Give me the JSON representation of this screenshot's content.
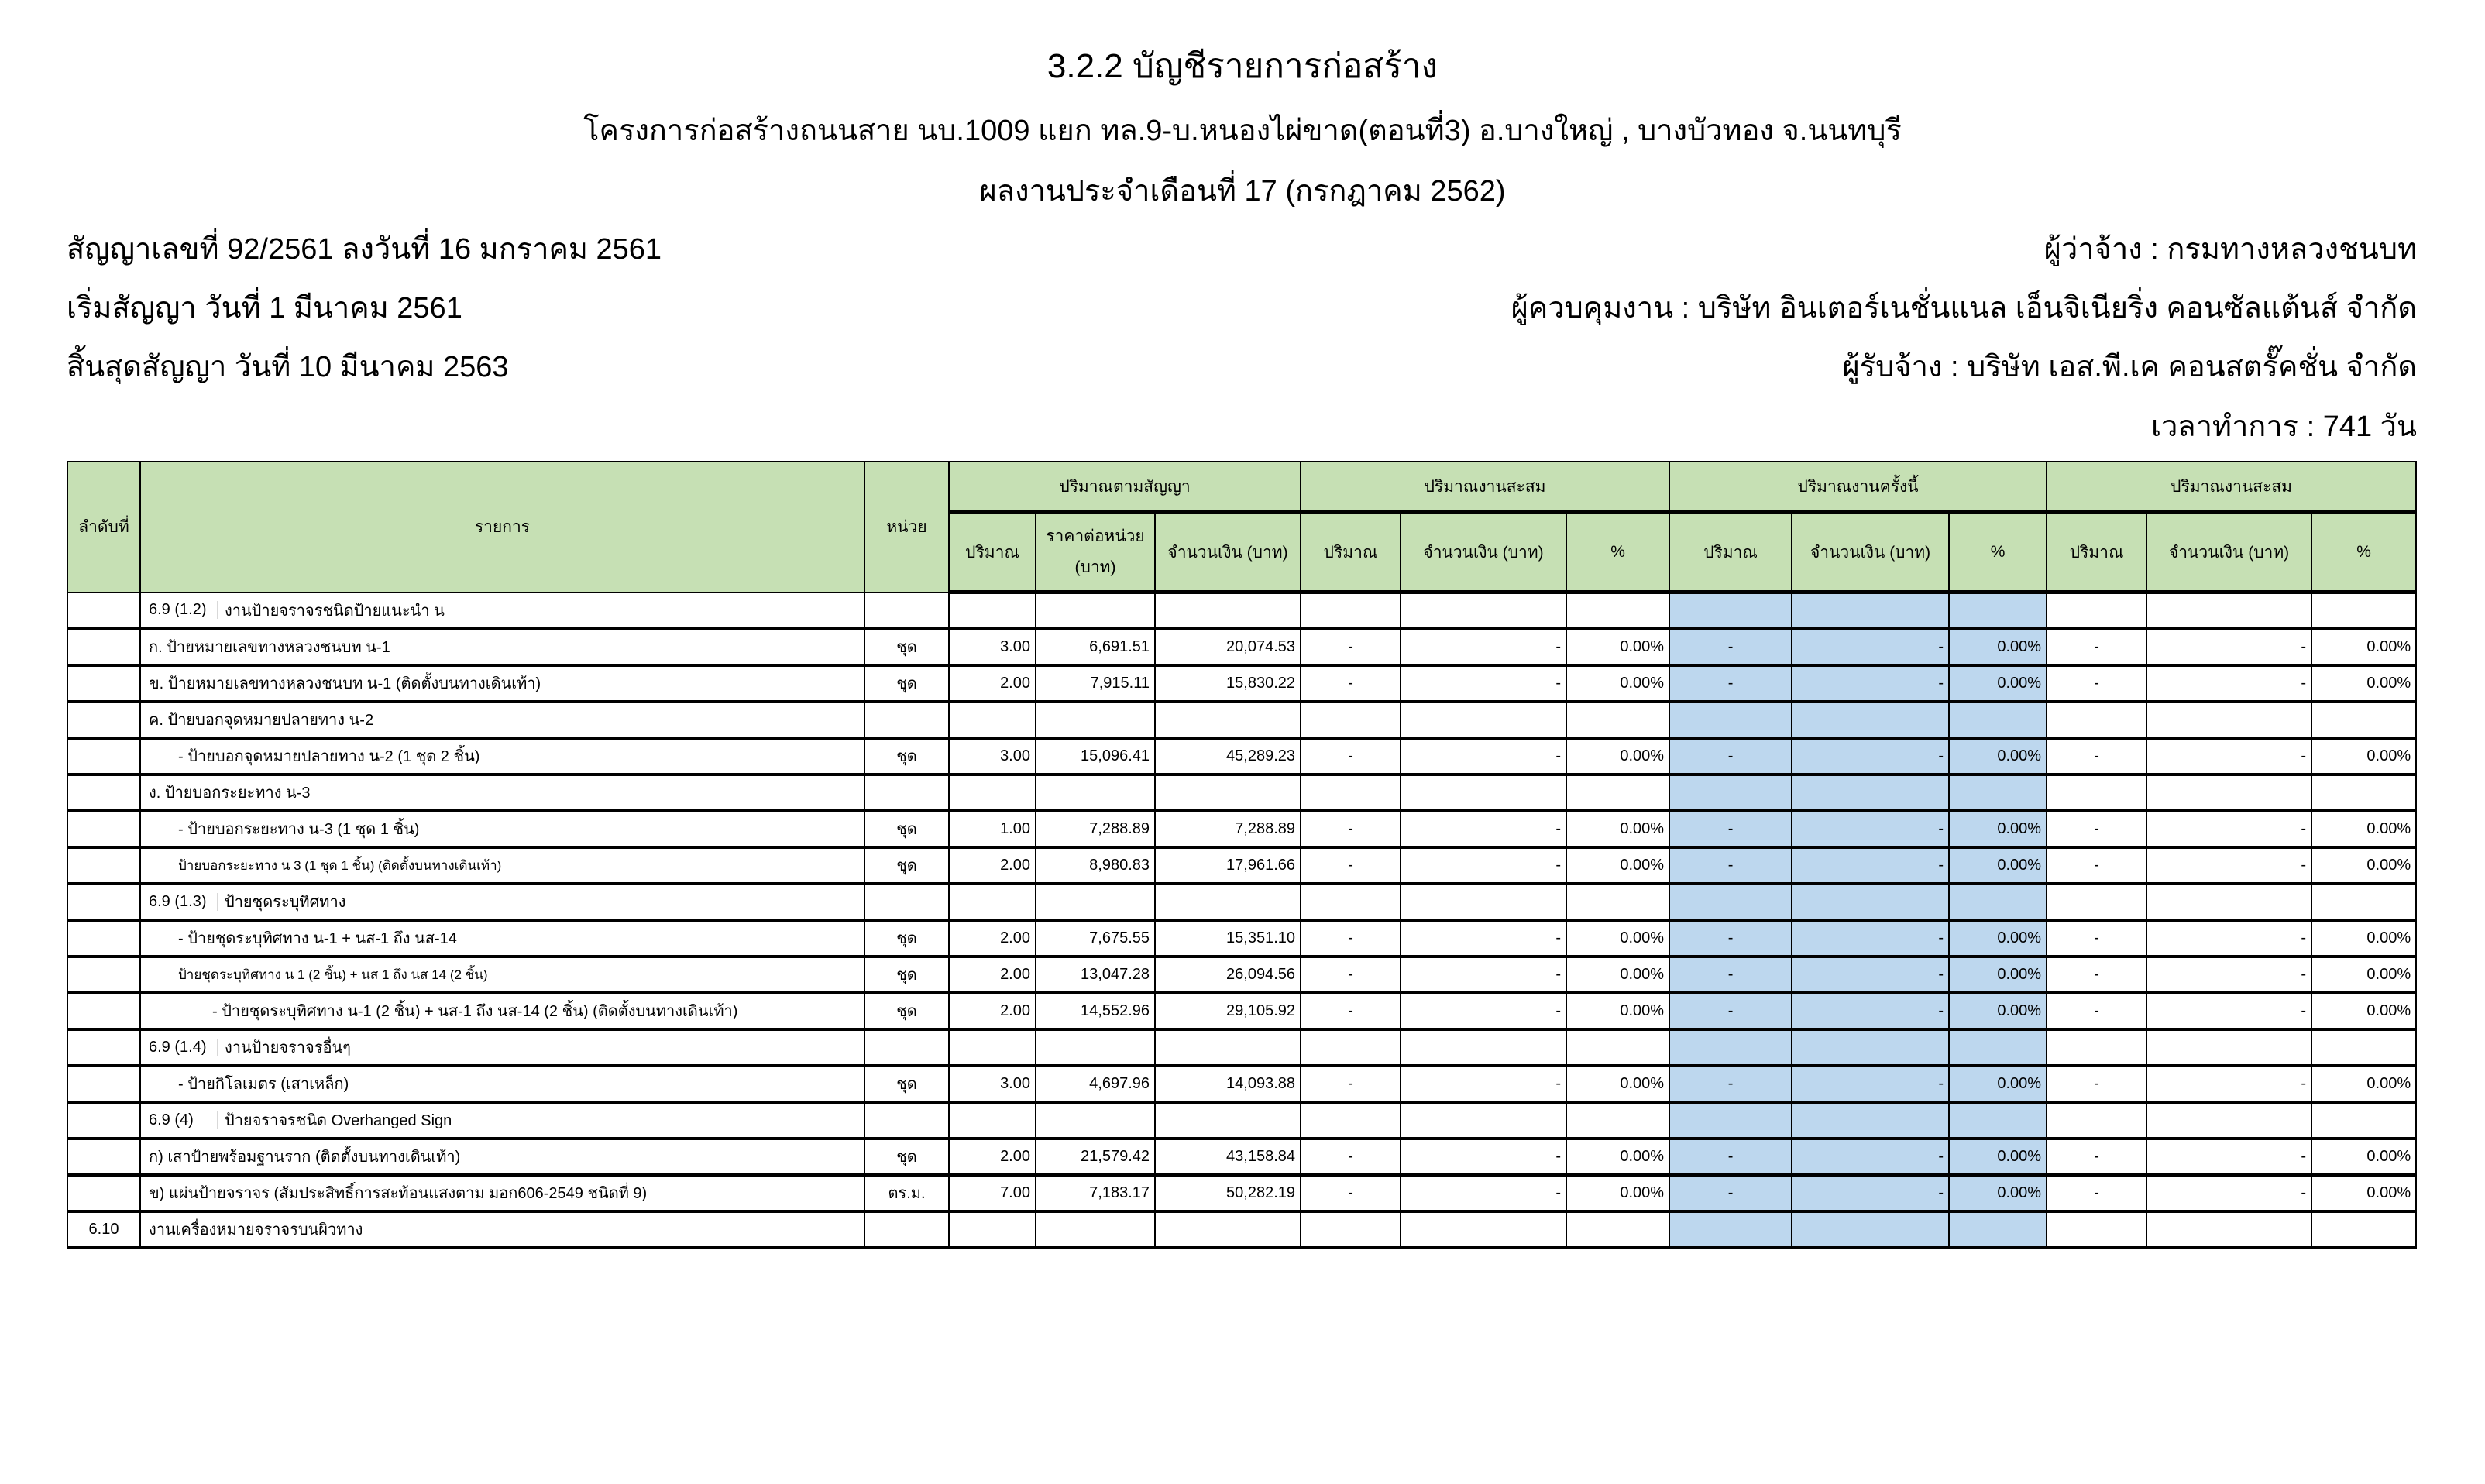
{
  "header": {
    "title": "3.2.2 บัญชีรายการก่อสร้าง",
    "project": "โครงการก่อสร้างถนนสาย นบ.1009 แยก ทล.9-บ.หนองไผ่ขาด(ตอนที่3)  อ.บางใหญ่ , บางบัวทอง จ.นนทบุรี",
    "period": "ผลงานประจำเดือนที่ 17 (กรกฎาคม 2562)",
    "contract": "สัญญาเลขที่ 92/2561 ลงวันที่ 16 มกราคม 2561",
    "start": "เริ่มสัญญา  วันที่ 1 มีนาคม 2561",
    "end": "สิ้นสุดสัญญา  วันที่ 10 มีนาคม 2563",
    "employer": "ผู้ว่าจ้าง : กรมทางหลวงชนบท",
    "supervisor": "ผู้ควบคุมงาน : บริษัท อินเตอร์เนชั่นแนล เอ็นจิเนียริ่ง คอนซัลแต้นส์ จำกัด",
    "contractor": "ผู้รับจ้าง : บริษัท เอส.พี.เค คอนสตรั๊คชั่น จำกัด",
    "duration": "เวลาทำการ : 741 วัน"
  },
  "colors": {
    "header_bg": "#c6e0b4",
    "current_period_bg": "#bdd7ee"
  },
  "table": {
    "columns": {
      "no": "ลำดับที่",
      "item": "รายการ",
      "unit": "หน่วย",
      "contract_group": "ปริมาณตามสัญญา",
      "prev_group": "ปริมาณงานสะสม",
      "current_group": "ปริมาณงานครั้งนี้",
      "cum_group": "ปริมาณงานสะสม",
      "qty": "ปริมาณ",
      "unit_price": "ราคาต่อหน่วย (บาท)",
      "amount": "จำนวนเงิน (บาท)",
      "pct": "%"
    },
    "rows": [
      {
        "no": "",
        "code": "6.9 (1.2)",
        "desc": "งานป้ายจราจรชนิดป้ายแนะนำ น",
        "indent": 0,
        "unit": "",
        "qty": "",
        "price": "",
        "amount": "",
        "p": [
          "",
          "",
          ""
        ],
        "c": [
          "",
          "",
          ""
        ],
        "t": [
          "",
          "",
          ""
        ]
      },
      {
        "no": "",
        "code": "",
        "desc": "ก. ป้ายหมายเลขทางหลวงชนบท น-1",
        "indent": 0,
        "unit": "ชุด",
        "qty": "3.00",
        "price": "6,691.51",
        "amount": "20,074.53",
        "p": [
          "-",
          "-",
          "0.00%"
        ],
        "c": [
          "-",
          "-",
          "0.00%"
        ],
        "t": [
          "-",
          "-",
          "0.00%"
        ]
      },
      {
        "no": "",
        "code": "",
        "desc": "ข. ป้ายหมายเลขทางหลวงชนบท น-1 (ติดตั้งบนทางเดินเท้า)",
        "indent": 0,
        "unit": "ชุด",
        "qty": "2.00",
        "price": "7,915.11",
        "amount": "15,830.22",
        "p": [
          "-",
          "-",
          "0.00%"
        ],
        "c": [
          "-",
          "-",
          "0.00%"
        ],
        "t": [
          "-",
          "-",
          "0.00%"
        ]
      },
      {
        "no": "",
        "code": "",
        "desc": "ค. ป้ายบอกจุดหมายปลายทาง น-2",
        "indent": 0,
        "unit": "",
        "qty": "",
        "price": "",
        "amount": "",
        "p": [
          "",
          "",
          ""
        ],
        "c": [
          "",
          "",
          ""
        ],
        "t": [
          "",
          "",
          ""
        ]
      },
      {
        "no": "",
        "code": "",
        "desc": "- ป้ายบอกจุดหมายปลายทาง น-2 (1 ชุด 2 ชิ้น)",
        "indent": 1,
        "unit": "ชุด",
        "qty": "3.00",
        "price": "15,096.41",
        "amount": "45,289.23",
        "p": [
          "-",
          "-",
          "0.00%"
        ],
        "c": [
          "-",
          "-",
          "0.00%"
        ],
        "t": [
          "-",
          "-",
          "0.00%"
        ]
      },
      {
        "no": "",
        "code": "",
        "desc": "ง. ป้ายบอกระยะทาง น-3",
        "indent": 0,
        "unit": "",
        "qty": "",
        "price": "",
        "amount": "",
        "p": [
          "",
          "",
          ""
        ],
        "c": [
          "",
          "",
          ""
        ],
        "t": [
          "",
          "",
          ""
        ]
      },
      {
        "no": "",
        "code": "",
        "desc": "- ป้ายบอกระยะทาง น-3 (1 ชุด 1 ชิ้น)",
        "indent": 1,
        "unit": "ชุด",
        "qty": "1.00",
        "price": "7,288.89",
        "amount": "7,288.89",
        "p": [
          "-",
          "-",
          "0.00%"
        ],
        "c": [
          "-",
          "-",
          "0.00%"
        ],
        "t": [
          "-",
          "-",
          "0.00%"
        ]
      },
      {
        "no": "",
        "code": "",
        "desc": "ป้ายบอกระยะทาง น 3 (1 ชุด 1 ชิ้น) (ติดตั้งบนทางเดินเท้า)",
        "indent": 1,
        "small": true,
        "unit": "ชุด",
        "qty": "2.00",
        "price": "8,980.83",
        "amount": "17,961.66",
        "p": [
          "-",
          "-",
          "0.00%"
        ],
        "c": [
          "-",
          "-",
          "0.00%"
        ],
        "t": [
          "-",
          "-",
          "0.00%"
        ]
      },
      {
        "no": "",
        "code": "6.9 (1.3)",
        "desc": "ป้ายชุดระบุทิศทาง",
        "indent": 0,
        "unit": "",
        "qty": "",
        "price": "",
        "amount": "",
        "p": [
          "",
          "",
          ""
        ],
        "c": [
          "",
          "",
          ""
        ],
        "t": [
          "",
          "",
          ""
        ]
      },
      {
        "no": "",
        "code": "",
        "desc": "- ป้ายชุดระบุทิศทาง น-1 + นส-1 ถึง นส-14",
        "indent": 1,
        "unit": "ชุด",
        "qty": "2.00",
        "price": "7,675.55",
        "amount": "15,351.10",
        "p": [
          "-",
          "-",
          "0.00%"
        ],
        "c": [
          "-",
          "-",
          "0.00%"
        ],
        "t": [
          "-",
          "-",
          "0.00%"
        ]
      },
      {
        "no": "",
        "code": "",
        "desc": "ป้ายชุดระบุทิศทาง น 1 (2 ชิ้น) + นส 1 ถึง นส 14 (2 ชิ้น)",
        "indent": 1,
        "small": true,
        "unit": "ชุด",
        "qty": "2.00",
        "price": "13,047.28",
        "amount": "26,094.56",
        "p": [
          "-",
          "-",
          "0.00%"
        ],
        "c": [
          "-",
          "-",
          "0.00%"
        ],
        "t": [
          "-",
          "-",
          "0.00%"
        ]
      },
      {
        "no": "",
        "code": "",
        "desc": "- ป้ายชุดระบุทิศทาง น-1 (2 ชิ้น) + นส-1 ถึง นส-14 (2 ชิ้น) (ติดตั้งบนทางเดินเท้า)",
        "indent": 2,
        "unit": "ชุด",
        "qty": "2.00",
        "price": "14,552.96",
        "amount": "29,105.92",
        "p": [
          "-",
          "-",
          "0.00%"
        ],
        "c": [
          "-",
          "-",
          "0.00%"
        ],
        "t": [
          "-",
          "-",
          "0.00%"
        ]
      },
      {
        "no": "",
        "code": "6.9 (1.4)",
        "desc": "งานป้ายจราจรอื่นๆ",
        "indent": 0,
        "unit": "",
        "qty": "",
        "price": "",
        "amount": "",
        "p": [
          "",
          "",
          ""
        ],
        "c": [
          "",
          "",
          ""
        ],
        "t": [
          "",
          "",
          ""
        ]
      },
      {
        "no": "",
        "code": "",
        "desc": "- ป้ายกิโลเมตร (เสาเหล็ก)",
        "indent": 1,
        "unit": "ชุด",
        "qty": "3.00",
        "price": "4,697.96",
        "amount": "14,093.88",
        "p": [
          "-",
          "-",
          "0.00%"
        ],
        "c": [
          "-",
          "-",
          "0.00%"
        ],
        "t": [
          "-",
          "-",
          "0.00%"
        ]
      },
      {
        "no": "",
        "code": "6.9 (4)",
        "desc": "ป้ายจราจรชนิด Overhanged Sign",
        "indent": 0,
        "unit": "",
        "qty": "",
        "price": "",
        "amount": "",
        "p": [
          "",
          "",
          ""
        ],
        "c": [
          "",
          "",
          ""
        ],
        "t": [
          "",
          "",
          ""
        ]
      },
      {
        "no": "",
        "code": "",
        "desc": "ก) เสาป้ายพร้อมฐานราก (ติดตั้งบนทางเดินเท้า)",
        "indent": 0,
        "unit": "ชุด",
        "qty": "2.00",
        "price": "21,579.42",
        "amount": "43,158.84",
        "p": [
          "-",
          "-",
          "0.00%"
        ],
        "c": [
          "-",
          "-",
          "0.00%"
        ],
        "t": [
          "-",
          "-",
          "0.00%"
        ]
      },
      {
        "no": "",
        "code": "",
        "desc": "ข) แผ่นป้ายจราจร (สัมประสิทธิ์การสะท้อนแสงตาม มอก606-2549 ชนิดที่ 9)",
        "indent": 0,
        "unit": "ตร.ม.",
        "qty": "7.00",
        "price": "7,183.17",
        "amount": "50,282.19",
        "p": [
          "-",
          "-",
          "0.00%"
        ],
        "c": [
          "-",
          "-",
          "0.00%"
        ],
        "t": [
          "-",
          "-",
          "0.00%"
        ]
      },
      {
        "no": "6.10",
        "code": "",
        "desc": "งานเครื่องหมายจราจรบนผิวทาง",
        "indent": 0,
        "unit": "",
        "qty": "",
        "price": "",
        "amount": "",
        "p": [
          "",
          "",
          ""
        ],
        "c": [
          "",
          "",
          ""
        ],
        "t": [
          "",
          "",
          ""
        ]
      }
    ]
  }
}
